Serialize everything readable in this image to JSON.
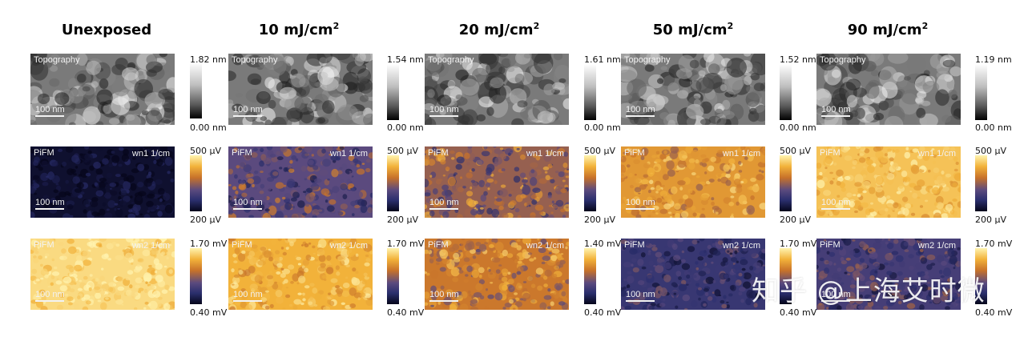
{
  "columns": [
    {
      "title": "Unexposed",
      "title_sup": "",
      "topo": {
        "label": "Topography",
        "scalebar": "100 nm",
        "cbar_top": "1.82 nm",
        "cbar_bottom": "0.00 nm"
      },
      "wn1": {
        "label": "PiFM",
        "wn": "wn1 1/cm",
        "scalebar": "100 nm",
        "cbar_top": "500 µV",
        "cbar_bottom": "200 µV",
        "level": 0.05
      },
      "wn2": {
        "label": "PiFM",
        "wn": "wn2 1/cm",
        "scalebar": "100 nm",
        "cbar_top": "1.70 mV",
        "cbar_bottom": "0.40 mV",
        "level": 0.92
      }
    },
    {
      "title": "10 mJ/cm",
      "title_sup": "2",
      "topo": {
        "label": "Topography",
        "scalebar": "100 nm",
        "cbar_top": "1.54 nm",
        "cbar_bottom": "0.00 nm"
      },
      "wn1": {
        "label": "PiFM",
        "wn": "wn1 1/cm",
        "scalebar": "100 nm",
        "cbar_top": "500 µV",
        "cbar_bottom": "200 µV",
        "level": 0.38
      },
      "wn2": {
        "label": "PiFM",
        "wn": "wn2 1/cm",
        "scalebar": "100 nm",
        "cbar_top": "1.70 mV",
        "cbar_bottom": "0.40 mV",
        "level": 0.8
      }
    },
    {
      "title": "20 mJ/cm",
      "title_sup": "2",
      "topo": {
        "label": "Topography",
        "scalebar": "100 nm",
        "cbar_top": "1.61 nm",
        "cbar_bottom": "0.00 nm"
      },
      "wn1": {
        "label": "PiFM",
        "wn": "wn1 1/cm",
        "scalebar": "100 nm",
        "cbar_top": "500 µV",
        "cbar_bottom": "200 µV",
        "level": 0.5
      },
      "wn2": {
        "label": "PiFM",
        "wn": "wn2 1/cm",
        "scalebar": "100 nm",
        "cbar_top": "1.40 mV",
        "cbar_bottom": "0.40 mV",
        "level": 0.62
      }
    },
    {
      "title": "50 mJ/cm",
      "title_sup": "2",
      "topo": {
        "label": "Topography",
        "scalebar": "100 nm",
        "cbar_top": "1.52 nm",
        "cbar_bottom": "0.00 nm"
      },
      "wn1": {
        "label": "PiFM",
        "wn": "wn1 1/cm",
        "scalebar": "100 nm",
        "cbar_top": "500 µV",
        "cbar_bottom": "200 µV",
        "level": 0.72
      },
      "wn2": {
        "label": "PiFM",
        "wn": "wn2 1/cm",
        "scalebar": "100 nm",
        "cbar_top": "1.70 mV",
        "cbar_bottom": "0.40 mV",
        "level": 0.25
      }
    },
    {
      "title": "90 mJ/cm",
      "title_sup": "2",
      "topo": {
        "label": "Topography",
        "scalebar": "100 nm",
        "cbar_top": "1.19 nm",
        "cbar_bottom": "0.00 nm"
      },
      "wn1": {
        "label": "PiFM",
        "wn": "wn1 1/cm",
        "scalebar": "100 nm",
        "cbar_top": "500 µV",
        "cbar_bottom": "200 µV",
        "level": 0.85
      },
      "wn2": {
        "label": "PiFM",
        "wn": "wn2 1/cm",
        "scalebar": "100 nm",
        "cbar_top": "1.70 mV",
        "cbar_bottom": "0.40 mV",
        "level": 0.3
      }
    }
  ],
  "watermark": "知乎 @上海艾时微",
  "colors": {
    "gray_high": "#ffffff",
    "gray_low": "#000000",
    "pifm_high": "#f2b23a",
    "pifm_low": "#05051a"
  }
}
